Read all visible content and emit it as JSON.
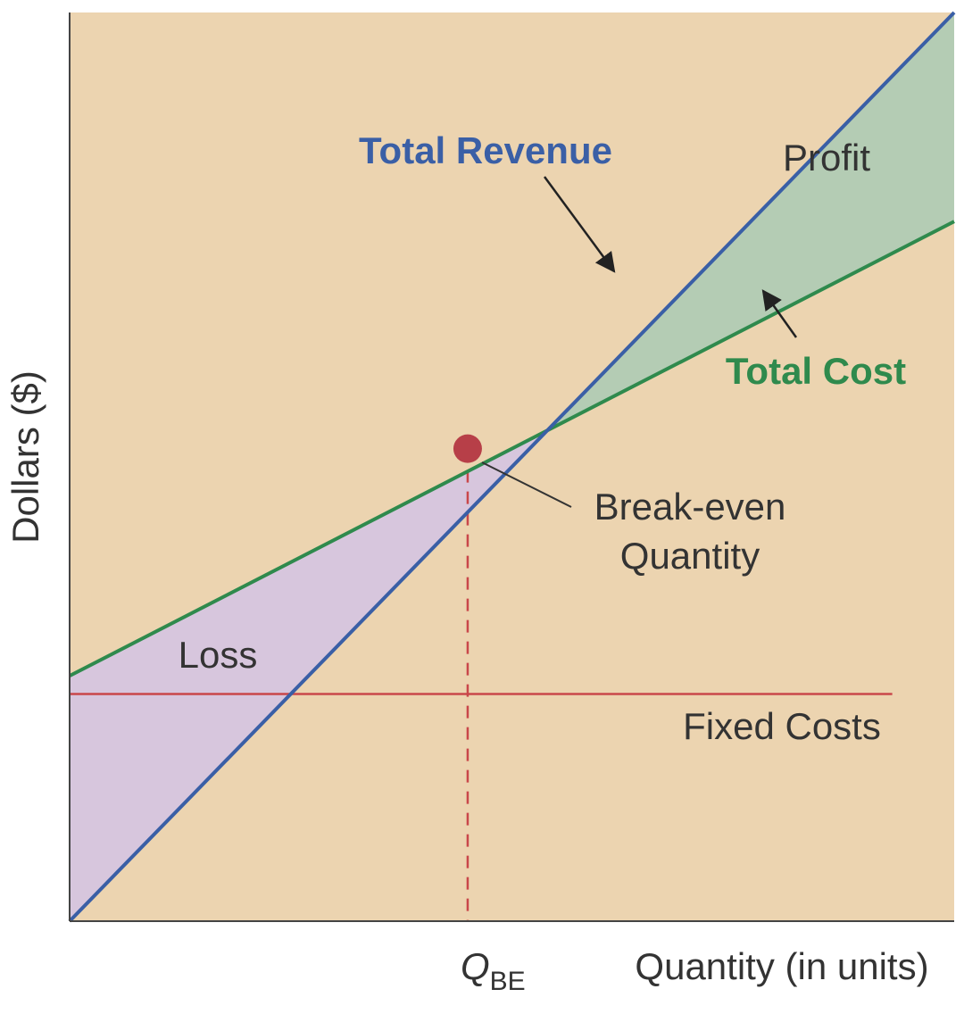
{
  "chart_data": {
    "type": "line",
    "title": "",
    "xlabel": "Quantity (in units)",
    "ylabel": "Dollars ($)",
    "x_tick_label": {
      "main": "Q",
      "sub": "BE"
    },
    "series": [
      {
        "name": "Total Revenue",
        "x": [
          0,
          100
        ],
        "y": [
          0,
          100
        ]
      },
      {
        "name": "Total Cost",
        "x": [
          0,
          100
        ],
        "y": [
          27,
          77
        ]
      },
      {
        "name": "Fixed Costs",
        "x": [
          0,
          93
        ],
        "y": [
          25,
          25
        ]
      }
    ],
    "break_even": {
      "label_line1": "Break-even",
      "label_line2": "Quantity",
      "x": 45,
      "y": 52
    },
    "regions": {
      "profit_label": "Profit",
      "loss_label": "Loss"
    },
    "grid": false,
    "colors": {
      "background": "#ecd4b0",
      "revenue": "#3a5fa6",
      "cost": "#2f8a4d",
      "fixed": "#c9474a",
      "profit_fill": "#b4ccb4",
      "loss_fill": "#d7c6dd",
      "break_even_point": "#b73f48",
      "axis": "#444444",
      "text": "#333333"
    }
  }
}
